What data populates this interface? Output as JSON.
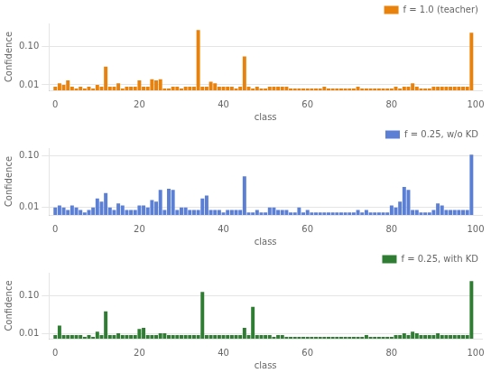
{
  "chart_data": [
    {
      "type": "bar",
      "xlabel": "class",
      "ylabel": "Confidence",
      "x": [
        0,
        1,
        2,
        3,
        4,
        5,
        6,
        7,
        8,
        9,
        10,
        11,
        12,
        13,
        14,
        15,
        16,
        17,
        18,
        19,
        20,
        21,
        22,
        23,
        24,
        25,
        26,
        27,
        28,
        29,
        30,
        31,
        32,
        33,
        34,
        35,
        36,
        37,
        38,
        39,
        40,
        41,
        42,
        43,
        44,
        45,
        46,
        47,
        48,
        49,
        50,
        51,
        52,
        53,
        54,
        55,
        56,
        57,
        58,
        59,
        60,
        61,
        62,
        63,
        64,
        65,
        66,
        67,
        68,
        69,
        70,
        71,
        72,
        73,
        74,
        75,
        76,
        77,
        78,
        79,
        80,
        81,
        82,
        83,
        84,
        85,
        86,
        87,
        88,
        89,
        90,
        91,
        92,
        93,
        94,
        95,
        96,
        97,
        98,
        99
      ],
      "series": [
        {
          "name": "f = 1.0 (teacher)",
          "color": "#E8820C",
          "values": [
            0.009,
            0.011,
            0.01,
            0.013,
            0.009,
            0.008,
            0.009,
            0.008,
            0.009,
            0.008,
            0.01,
            0.009,
            0.03,
            0.009,
            0.009,
            0.011,
            0.008,
            0.009,
            0.009,
            0.009,
            0.013,
            0.009,
            0.009,
            0.014,
            0.013,
            0.014,
            0.008,
            0.008,
            0.009,
            0.009,
            0.008,
            0.009,
            0.009,
            0.009,
            0.27,
            0.009,
            0.009,
            0.012,
            0.011,
            0.009,
            0.009,
            0.009,
            0.009,
            0.008,
            0.009,
            0.055,
            0.009,
            0.008,
            0.009,
            0.008,
            0.008,
            0.009,
            0.009,
            0.009,
            0.009,
            0.009,
            0.008,
            0.008,
            0.008,
            0.008,
            0.008,
            0.008,
            0.008,
            0.008,
            0.009,
            0.008,
            0.008,
            0.008,
            0.008,
            0.008,
            0.008,
            0.008,
            0.009,
            0.008,
            0.008,
            0.008,
            0.008,
            0.008,
            0.008,
            0.008,
            0.008,
            0.009,
            0.008,
            0.009,
            0.009,
            0.011,
            0.009,
            0.008,
            0.008,
            0.008,
            0.009,
            0.009,
            0.009,
            0.009,
            0.009,
            0.009,
            0.009,
            0.009,
            0.009,
            0.23
          ]
        }
      ],
      "xlim": [
        -1.5,
        101.5
      ],
      "xticks": [
        0,
        20,
        40,
        60,
        80,
        100
      ],
      "ylim": [
        0.0072,
        0.4
      ],
      "yticks": [
        0.01,
        {
          "value": 0.1,
          "label": "0.10"
        }
      ],
      "log": "y",
      "grid": "y",
      "legend": "upper right"
    },
    {
      "type": "bar",
      "xlabel": "class",
      "ylabel": "Confidence",
      "x": [
        0,
        1,
        2,
        3,
        4,
        5,
        6,
        7,
        8,
        9,
        10,
        11,
        12,
        13,
        14,
        15,
        16,
        17,
        18,
        19,
        20,
        21,
        22,
        23,
        24,
        25,
        26,
        27,
        28,
        29,
        30,
        31,
        32,
        33,
        34,
        35,
        36,
        37,
        38,
        39,
        40,
        41,
        42,
        43,
        44,
        45,
        46,
        47,
        48,
        49,
        50,
        51,
        52,
        53,
        54,
        55,
        56,
        57,
        58,
        59,
        60,
        61,
        62,
        63,
        64,
        65,
        66,
        67,
        68,
        69,
        70,
        71,
        72,
        73,
        74,
        75,
        76,
        77,
        78,
        79,
        80,
        81,
        82,
        83,
        84,
        85,
        86,
        87,
        88,
        89,
        90,
        91,
        92,
        93,
        94,
        95,
        96,
        97,
        98,
        99
      ],
      "series": [
        {
          "name": "f = 0.25, w/o KD",
          "color": "#5B7FD4",
          "values": [
            0.01,
            0.011,
            0.01,
            0.009,
            0.011,
            0.01,
            0.009,
            0.008,
            0.009,
            0.01,
            0.015,
            0.013,
            0.019,
            0.01,
            0.009,
            0.012,
            0.011,
            0.009,
            0.009,
            0.009,
            0.011,
            0.011,
            0.01,
            0.014,
            0.013,
            0.022,
            0.009,
            0.023,
            0.022,
            0.009,
            0.01,
            0.01,
            0.009,
            0.009,
            0.009,
            0.015,
            0.017,
            0.009,
            0.009,
            0.009,
            0.008,
            0.009,
            0.009,
            0.009,
            0.009,
            0.04,
            0.008,
            0.008,
            0.009,
            0.008,
            0.008,
            0.01,
            0.01,
            0.009,
            0.009,
            0.009,
            0.008,
            0.008,
            0.01,
            0.008,
            0.009,
            0.008,
            0.008,
            0.008,
            0.008,
            0.008,
            0.008,
            0.008,
            0.008,
            0.008,
            0.008,
            0.008,
            0.009,
            0.008,
            0.009,
            0.008,
            0.008,
            0.008,
            0.008,
            0.008,
            0.011,
            0.01,
            0.013,
            0.025,
            0.022,
            0.009,
            0.009,
            0.008,
            0.008,
            0.008,
            0.009,
            0.012,
            0.011,
            0.009,
            0.009,
            0.009,
            0.009,
            0.009,
            0.009,
            0.105
          ]
        }
      ],
      "xlim": [
        -1.5,
        101.5
      ],
      "xticks": [
        0,
        20,
        40,
        60,
        80,
        100
      ],
      "ylim": [
        0.0072,
        0.14
      ],
      "yticks": [
        0.01,
        {
          "value": 0.1,
          "label": "0.10"
        }
      ],
      "log": "y",
      "grid": "y",
      "legend": "upper right"
    },
    {
      "type": "bar",
      "xlabel": "class",
      "ylabel": "Confidence",
      "x": [
        0,
        1,
        2,
        3,
        4,
        5,
        6,
        7,
        8,
        9,
        10,
        11,
        12,
        13,
        14,
        15,
        16,
        17,
        18,
        19,
        20,
        21,
        22,
        23,
        24,
        25,
        26,
        27,
        28,
        29,
        30,
        31,
        32,
        33,
        34,
        35,
        36,
        37,
        38,
        39,
        40,
        41,
        42,
        43,
        44,
        45,
        46,
        47,
        48,
        49,
        50,
        51,
        52,
        53,
        54,
        55,
        56,
        57,
        58,
        59,
        60,
        61,
        62,
        63,
        64,
        65,
        66,
        67,
        68,
        69,
        70,
        71,
        72,
        73,
        74,
        75,
        76,
        77,
        78,
        79,
        80,
        81,
        82,
        83,
        84,
        85,
        86,
        87,
        88,
        89,
        90,
        91,
        92,
        93,
        94,
        95,
        96,
        97,
        98,
        99
      ],
      "series": [
        {
          "name": "f = 0.25, with KD",
          "color": "#2E7D32",
          "values": [
            0.009,
            0.016,
            0.009,
            0.009,
            0.009,
            0.009,
            0.009,
            0.008,
            0.009,
            0.008,
            0.011,
            0.009,
            0.038,
            0.009,
            0.009,
            0.01,
            0.009,
            0.009,
            0.009,
            0.009,
            0.013,
            0.014,
            0.009,
            0.009,
            0.009,
            0.01,
            0.01,
            0.009,
            0.009,
            0.009,
            0.009,
            0.009,
            0.009,
            0.009,
            0.009,
            0.125,
            0.009,
            0.009,
            0.009,
            0.009,
            0.009,
            0.009,
            0.009,
            0.009,
            0.009,
            0.014,
            0.009,
            0.05,
            0.009,
            0.009,
            0.009,
            0.009,
            0.008,
            0.009,
            0.009,
            0.008,
            0.008,
            0.008,
            0.008,
            0.008,
            0.008,
            0.008,
            0.008,
            0.008,
            0.008,
            0.008,
            0.008,
            0.008,
            0.008,
            0.008,
            0.008,
            0.008,
            0.008,
            0.008,
            0.009,
            0.008,
            0.008,
            0.008,
            0.008,
            0.008,
            0.008,
            0.009,
            0.009,
            0.01,
            0.009,
            0.011,
            0.01,
            0.009,
            0.009,
            0.009,
            0.009,
            0.01,
            0.009,
            0.009,
            0.009,
            0.009,
            0.009,
            0.009,
            0.009,
            0.24
          ]
        }
      ],
      "xlim": [
        -1.5,
        101.5
      ],
      "xticks": [
        0,
        20,
        40,
        60,
        80,
        100
      ],
      "ylim": [
        0.0072,
        0.4
      ],
      "yticks": [
        0.01,
        {
          "value": 0.1,
          "label": "0.10"
        }
      ],
      "log": "y",
      "grid": "y",
      "legend": "upper right"
    }
  ]
}
